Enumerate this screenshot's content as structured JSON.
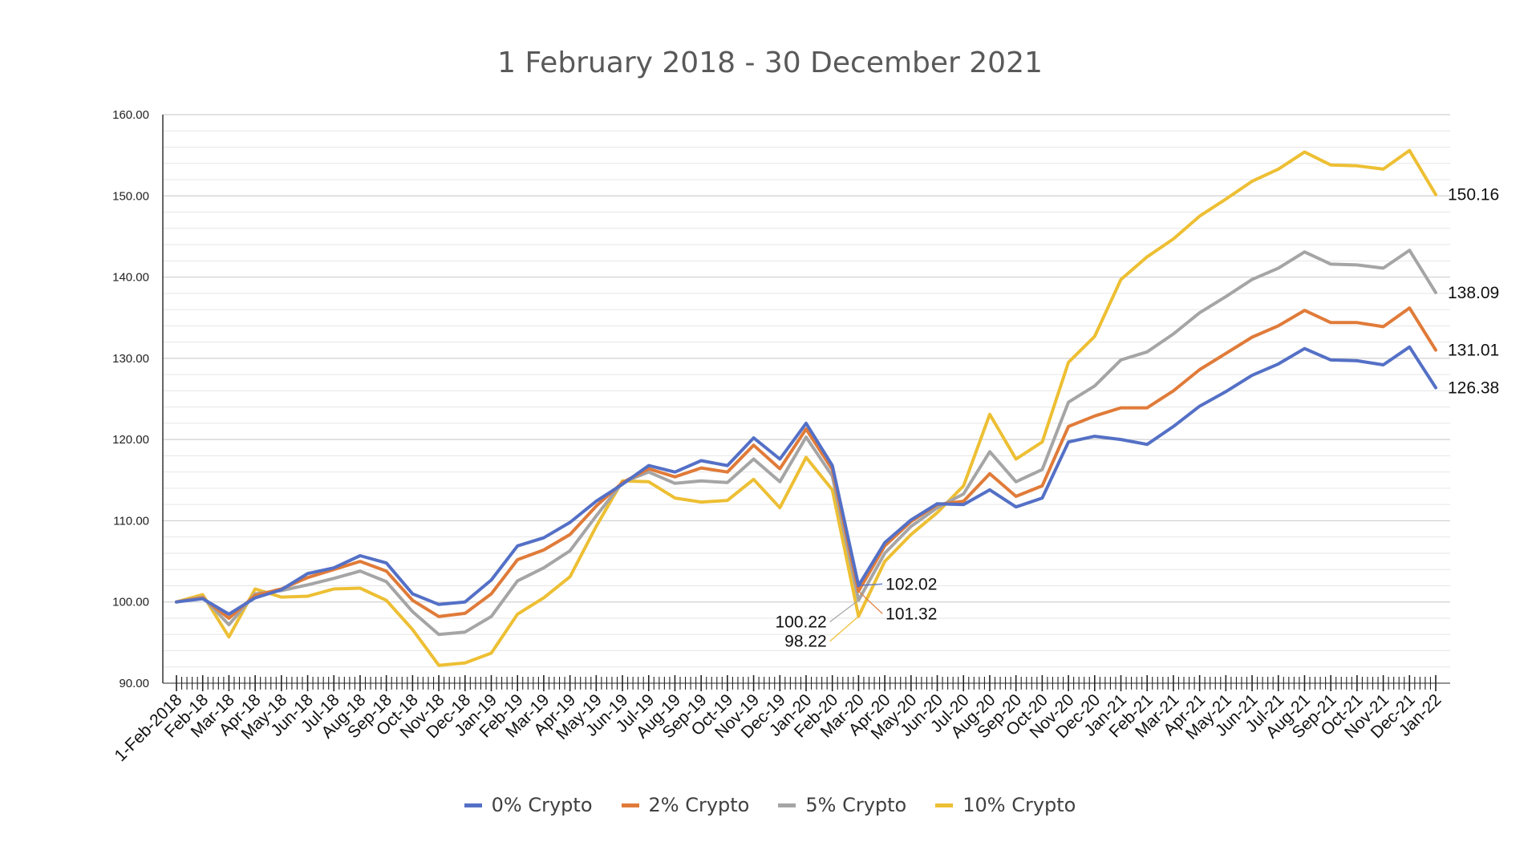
{
  "chart_data": {
    "type": "line",
    "title": "1 February 2018 - 30 December 2021",
    "xlabel": "",
    "ylabel": "",
    "ylim": [
      90,
      160
    ],
    "yticks": [
      "90.00",
      "100.00",
      "110.00",
      "120.00",
      "130.00",
      "140.00",
      "150.00",
      "160.00"
    ],
    "grid": true,
    "legend_position": "bottom",
    "categories": [
      "1-Feb-2018",
      "Feb-18",
      "Mar-18",
      "Apr-18",
      "May-18",
      "Jun-18",
      "Jul-18",
      "Aug-18",
      "Sep-18",
      "Oct-18",
      "Nov-18",
      "Dec-18",
      "Jan-19",
      "Feb-19",
      "Mar-19",
      "Apr-19",
      "May-19",
      "Jun-19",
      "Jul-19",
      "Aug-19",
      "Sep-19",
      "Oct-19",
      "Nov-19",
      "Dec-19",
      "Jan-20",
      "Feb-20",
      "Mar-20",
      "Apr-20",
      "May-20",
      "Jun-20",
      "Jul-20",
      "Aug-20",
      "Sep-20",
      "Oct-20",
      "Nov-20",
      "Dec-20",
      "Jan-21",
      "Feb-21",
      "Mar-21",
      "Apr-21",
      "May-21",
      "Jun-21",
      "Jul-21",
      "Aug-21",
      "Sep-21",
      "Oct-21",
      "Nov-21",
      "Dec-21",
      "Jan-22"
    ],
    "series": [
      {
        "name": "0% Crypto",
        "color": "#5470C6",
        "values": [
          100.0,
          100.4,
          98.5,
          100.5,
          101.5,
          103.5,
          104.2,
          105.7,
          104.8,
          101.0,
          99.7,
          100.0,
          102.7,
          106.9,
          107.9,
          109.8,
          112.4,
          114.5,
          116.8,
          116.0,
          117.4,
          116.8,
          120.2,
          117.6,
          122.0,
          116.8,
          102.02,
          107.3,
          110.1,
          112.1,
          112.0,
          113.8,
          111.7,
          112.8,
          119.7,
          120.4,
          120.0,
          119.4,
          121.6,
          124.1,
          125.9,
          127.9,
          129.3,
          131.2,
          129.8,
          129.7,
          129.2,
          131.4,
          126.38
        ]
      },
      {
        "name": "2% Crypto",
        "color": "#E07B39",
        "values": [
          100.0,
          100.5,
          98.0,
          100.8,
          101.6,
          103.0,
          104.0,
          105.0,
          103.8,
          100.2,
          98.2,
          98.6,
          101.0,
          105.2,
          106.4,
          108.3,
          111.8,
          114.7,
          116.4,
          115.4,
          116.5,
          116.0,
          119.3,
          116.4,
          121.3,
          116.3,
          101.32,
          106.9,
          109.9,
          112.0,
          112.4,
          115.8,
          113.0,
          114.3,
          121.6,
          122.9,
          123.9,
          123.9,
          126.0,
          128.6,
          130.6,
          132.6,
          134.0,
          135.9,
          134.4,
          134.4,
          133.9,
          136.2,
          131.01
        ]
      },
      {
        "name": "5% Crypto",
        "color": "#A5A5A5",
        "values": [
          100.0,
          100.6,
          97.2,
          101.0,
          101.4,
          102.1,
          102.9,
          103.8,
          102.5,
          98.8,
          96.0,
          96.3,
          98.2,
          102.6,
          104.2,
          106.3,
          110.6,
          114.7,
          116.0,
          114.6,
          114.9,
          114.7,
          117.6,
          114.8,
          120.3,
          115.5,
          100.22,
          106.0,
          109.3,
          111.6,
          113.3,
          118.5,
          114.8,
          116.3,
          124.6,
          126.6,
          129.8,
          130.8,
          133.0,
          135.6,
          137.6,
          139.7,
          141.1,
          143.1,
          141.6,
          141.5,
          141.1,
          143.3,
          138.09
        ]
      },
      {
        "name": "10% Crypto",
        "color": "#EDBF33",
        "values": [
          100.0,
          100.9,
          95.7,
          101.6,
          100.6,
          100.7,
          101.6,
          101.7,
          100.2,
          96.6,
          92.2,
          92.5,
          93.7,
          98.5,
          100.5,
          103.1,
          109.3,
          114.9,
          114.8,
          112.8,
          112.3,
          112.5,
          115.1,
          111.6,
          117.8,
          113.8,
          98.22,
          105.0,
          108.3,
          111.0,
          114.3,
          123.1,
          117.6,
          119.7,
          129.5,
          132.7,
          139.7,
          142.5,
          144.7,
          147.5,
          149.6,
          151.8,
          153.3,
          155.4,
          153.8,
          153.7,
          153.3,
          155.6,
          150.16
        ]
      }
    ],
    "annotations": [
      {
        "series": 0,
        "index": 26,
        "text": "102.02"
      },
      {
        "series": 1,
        "index": 26,
        "text": "101.32"
      },
      {
        "series": 2,
        "index": 26,
        "text": "100.22"
      },
      {
        "series": 3,
        "index": 26,
        "text": "98.22"
      },
      {
        "series": 3,
        "index": 48,
        "text": "150.16"
      },
      {
        "series": 2,
        "index": 48,
        "text": "138.09"
      },
      {
        "series": 1,
        "index": 48,
        "text": "131.01"
      },
      {
        "series": 0,
        "index": 48,
        "text": "126.38"
      }
    ]
  }
}
